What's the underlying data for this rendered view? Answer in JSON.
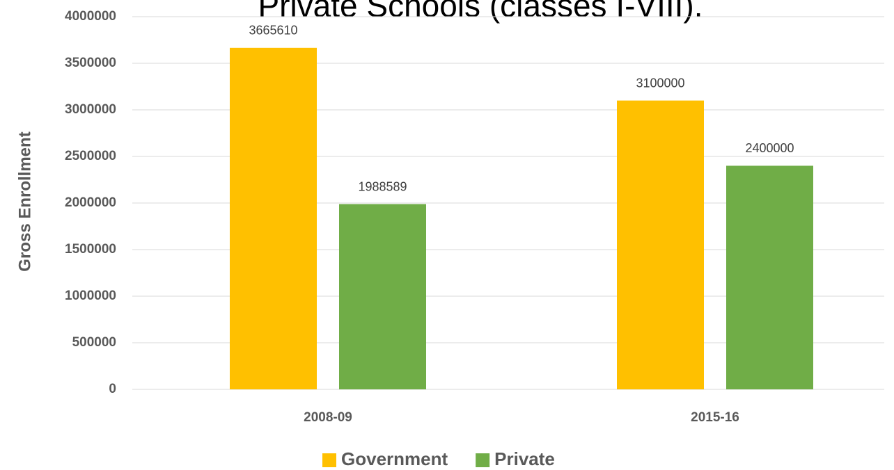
{
  "chart_data": {
    "type": "bar",
    "title": "Private Schools (classes I-VIII).",
    "y_label": "Gross Enrollment",
    "categories": [
      "2008-09",
      "2015-16"
    ],
    "series": [
      {
        "name": "Government",
        "color": "#ffc000",
        "values": [
          3665610,
          3100000
        ]
      },
      {
        "name": "Private",
        "color": "#70ad47",
        "values": [
          1988589,
          2400000
        ]
      }
    ],
    "ylim": [
      0,
      4000000
    ],
    "yticks": [
      0,
      500000,
      1000000,
      1500000,
      2000000,
      2500000,
      3000000,
      3500000,
      4000000
    ],
    "grid": true,
    "legend": "bottom"
  }
}
